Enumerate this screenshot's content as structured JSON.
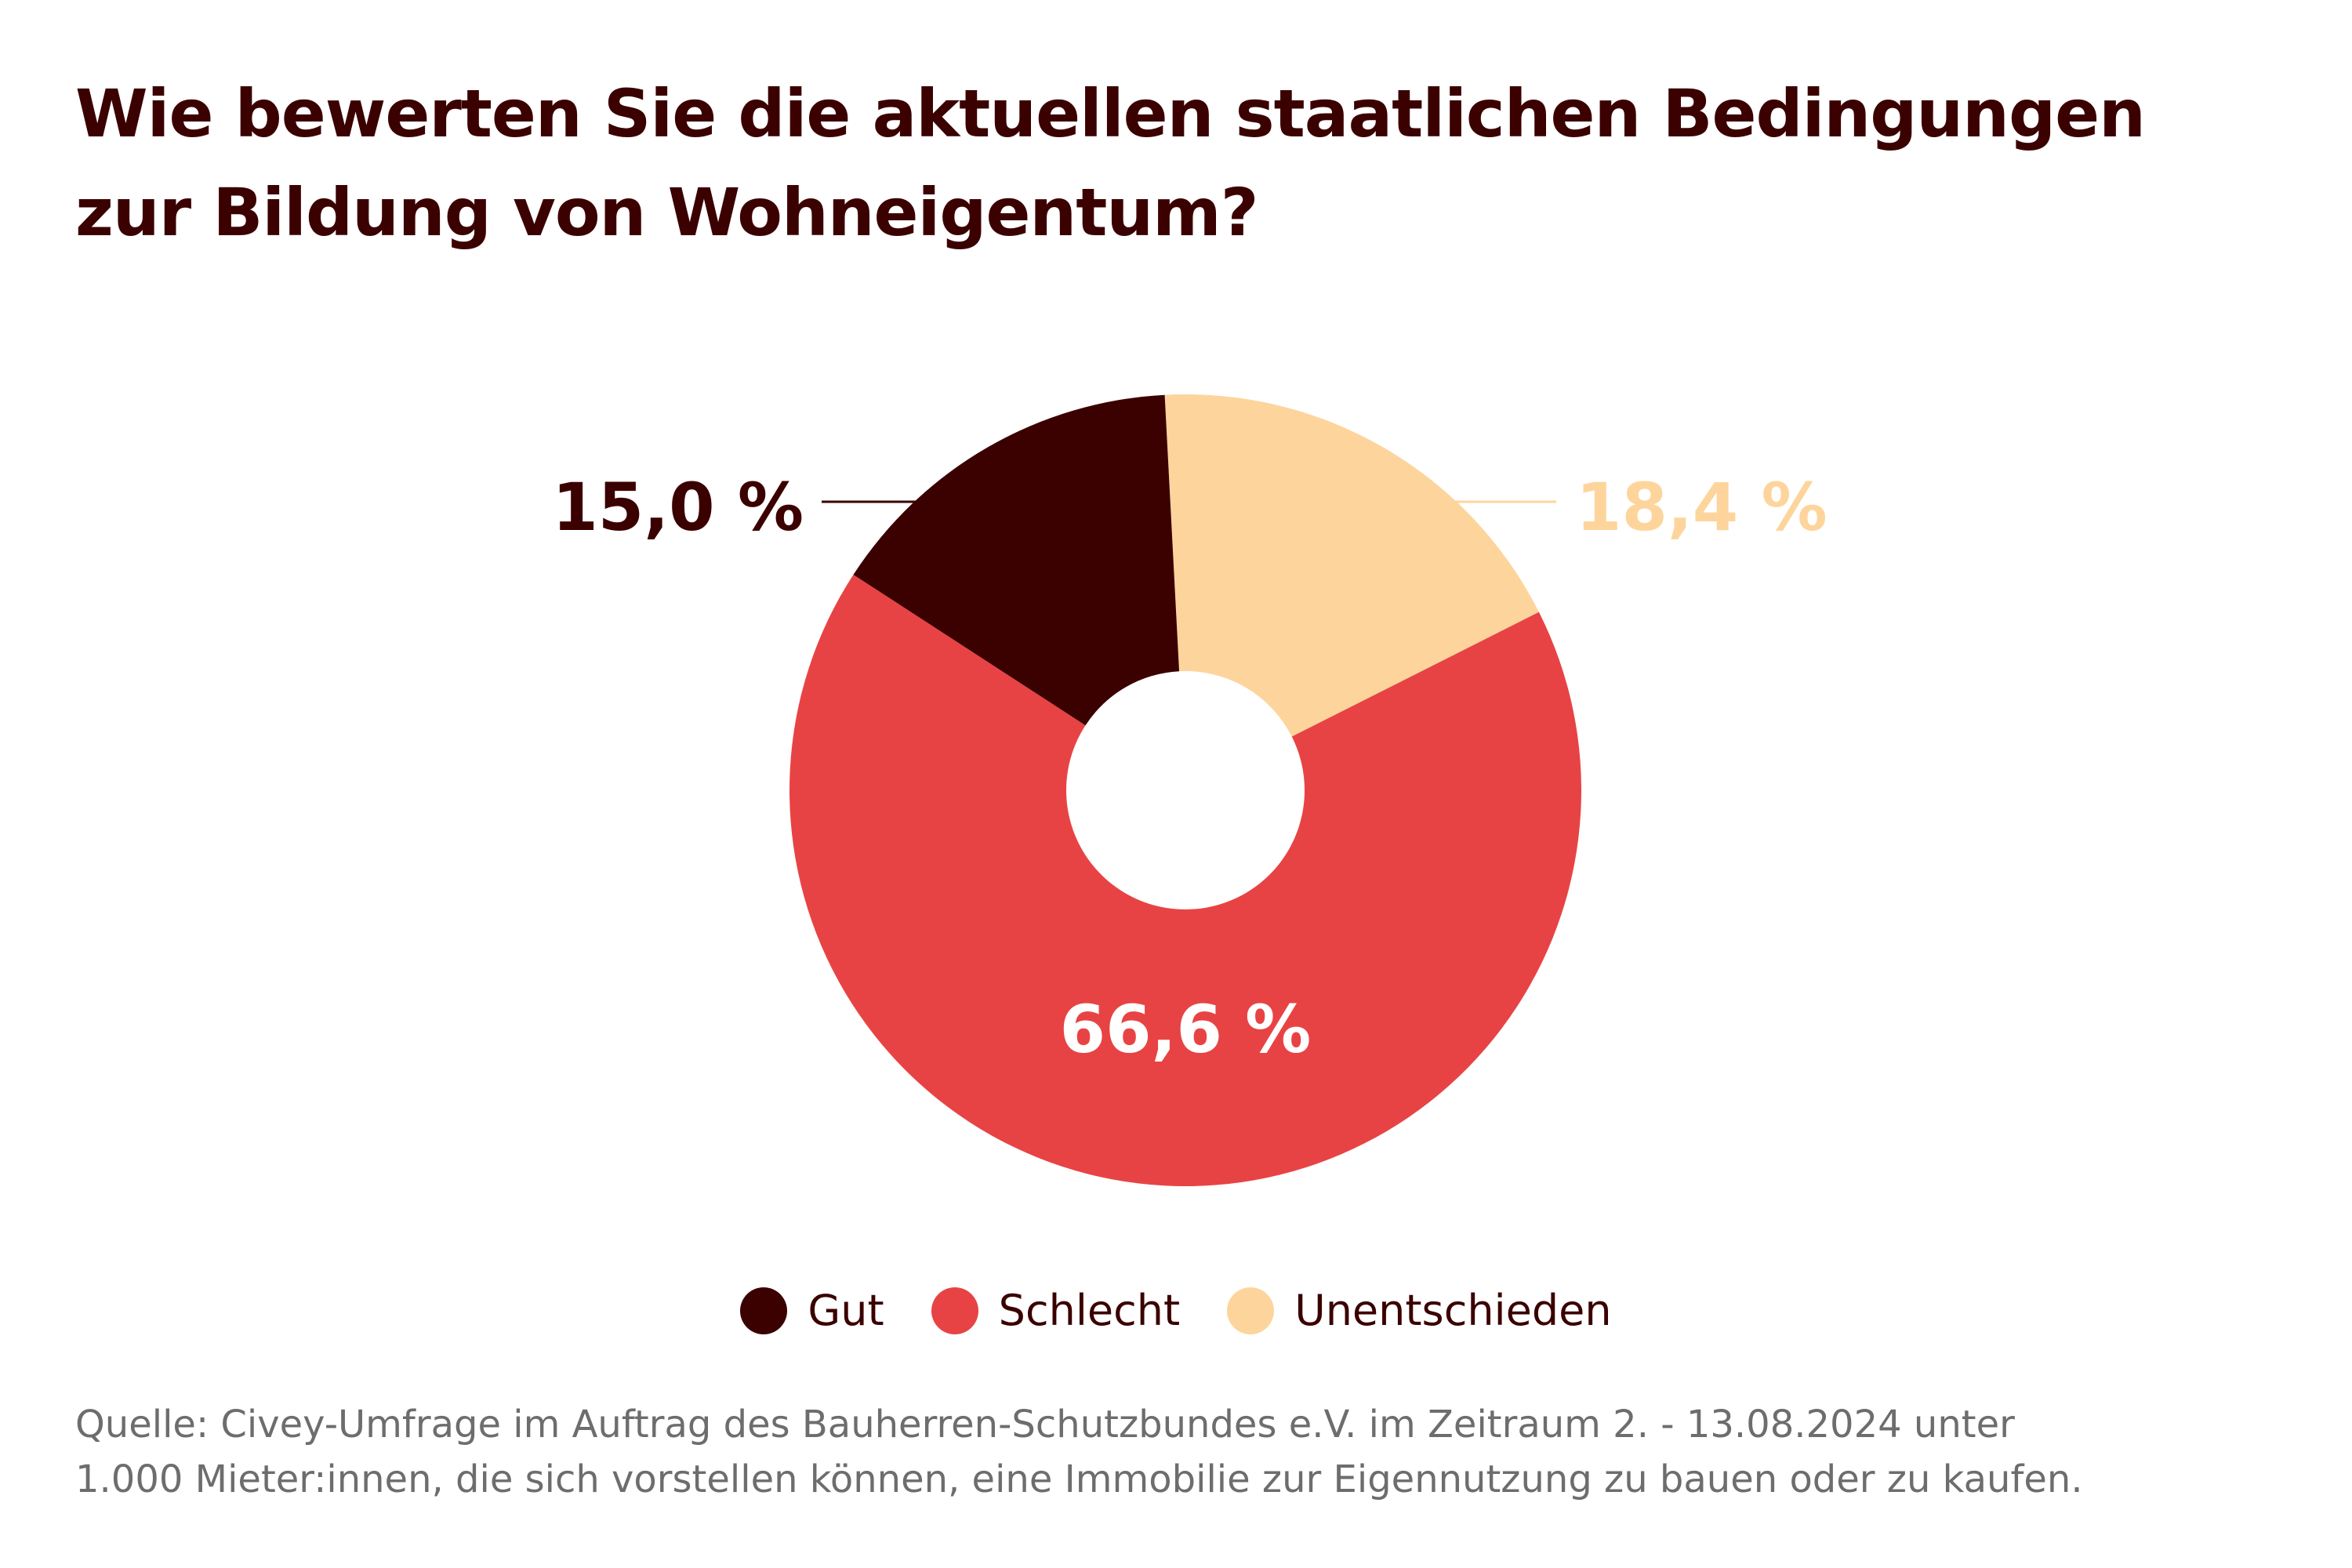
{
  "title": {
    "line1": "Wie bewerten Sie die aktuellen staatlichen Bedingungen",
    "line2": "zur Bildung von Wohneigentum?"
  },
  "chart_data": {
    "type": "pie",
    "variant": "donut",
    "categories": [
      "Gut",
      "Schlecht",
      "Unentschieden"
    ],
    "values": [
      15.0,
      66.6,
      18.4
    ],
    "value_labels": [
      "15,0 %",
      "66,6 %",
      "18,4 %"
    ],
    "unit": "%",
    "colors": [
      "#3b0000",
      "#e84344",
      "#fdd59c"
    ],
    "label_colors": [
      "#3b0000",
      "#ffffff",
      "#fdd59c"
    ],
    "legend_position": "bottom-center"
  },
  "legend": {
    "items": [
      {
        "label": "Gut",
        "color": "#3b0000"
      },
      {
        "label": "Schlecht",
        "color": "#e84344"
      },
      {
        "label": "Unentschieden",
        "color": "#fdd59c"
      }
    ]
  },
  "source": {
    "line1": "Quelle: Civey-Umfrage im Auftrag des Bauherren-Schutzbundes e.V. im Zeitraum 2. - 13.08.2024 unter",
    "line2": "1.000 Mieter:innen, die sich vorstellen können, eine Immobilie zur Eigennutzung zu bauen oder zu kaufen."
  }
}
